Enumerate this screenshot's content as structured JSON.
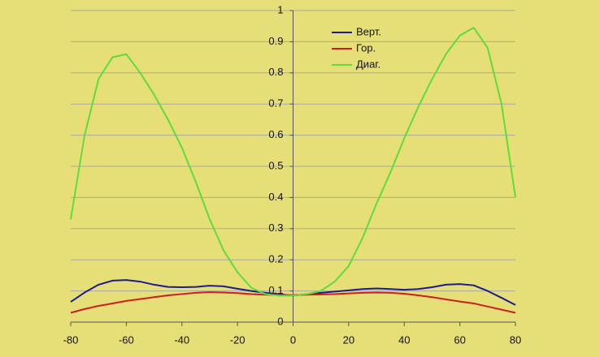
{
  "chart_data": {
    "type": "line",
    "x": [
      -80,
      -75,
      -70,
      -65,
      -60,
      -55,
      -50,
      -45,
      -40,
      -35,
      -30,
      -25,
      -20,
      -15,
      -10,
      -5,
      0,
      5,
      10,
      15,
      20,
      25,
      30,
      35,
      40,
      45,
      50,
      55,
      60,
      65,
      70,
      75,
      80
    ],
    "series": [
      {
        "name": "Верт.",
        "color": "#1c1c8c",
        "values": [
          0.065,
          0.095,
          0.12,
          0.133,
          0.135,
          0.13,
          0.12,
          0.113,
          0.112,
          0.113,
          0.117,
          0.115,
          0.107,
          0.1,
          0.094,
          0.09,
          0.085,
          0.09,
          0.094,
          0.098,
          0.102,
          0.106,
          0.108,
          0.106,
          0.104,
          0.106,
          0.112,
          0.12,
          0.122,
          0.118,
          0.1,
          0.078,
          0.055
        ]
      },
      {
        "name": "Гор.",
        "color": "#cc1f1f",
        "values": [
          0.03,
          0.042,
          0.052,
          0.06,
          0.068,
          0.074,
          0.08,
          0.086,
          0.09,
          0.094,
          0.096,
          0.095,
          0.093,
          0.09,
          0.088,
          0.087,
          0.087,
          0.088,
          0.089,
          0.09,
          0.092,
          0.094,
          0.095,
          0.094,
          0.091,
          0.086,
          0.08,
          0.073,
          0.066,
          0.06,
          0.05,
          0.04,
          0.03
        ]
      },
      {
        "name": "Диаг.",
        "color": "#5fdc3c",
        "values": [
          0.33,
          0.6,
          0.78,
          0.85,
          0.86,
          0.8,
          0.73,
          0.65,
          0.56,
          0.45,
          0.33,
          0.23,
          0.16,
          0.11,
          0.09,
          0.085,
          0.085,
          0.09,
          0.1,
          0.13,
          0.18,
          0.27,
          0.38,
          0.48,
          0.59,
          0.69,
          0.78,
          0.86,
          0.92,
          0.945,
          0.88,
          0.7,
          0.4
        ]
      }
    ],
    "xlim": [
      -80,
      80
    ],
    "xticks": [
      -80,
      -60,
      -40,
      -20,
      0,
      20,
      40,
      60,
      80
    ],
    "ylim": [
      0,
      1
    ],
    "yticks": [
      0,
      0.1,
      0.2,
      0.3,
      0.4,
      0.5,
      0.6,
      0.7,
      0.8,
      0.9,
      1
    ],
    "grid": true
  }
}
